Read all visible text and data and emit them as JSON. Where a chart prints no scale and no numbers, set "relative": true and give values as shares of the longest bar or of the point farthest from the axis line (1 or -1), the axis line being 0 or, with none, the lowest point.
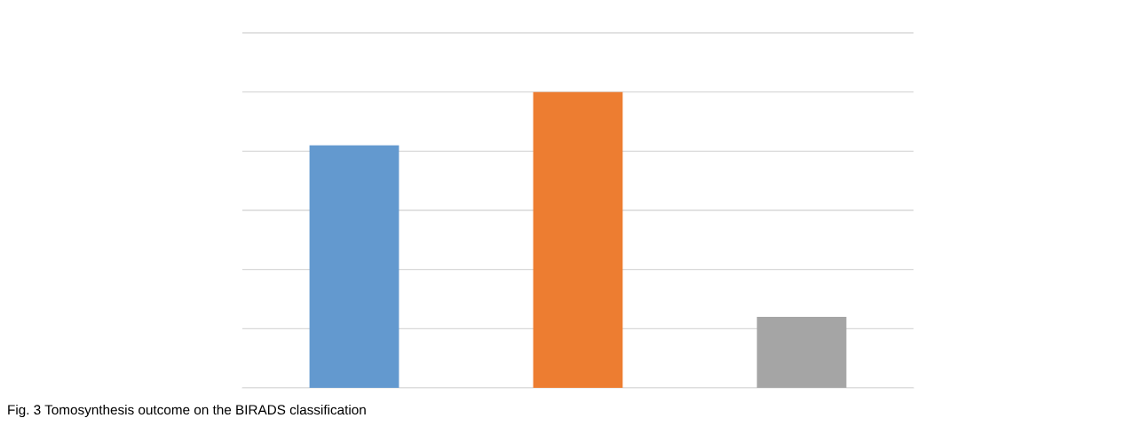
{
  "chart_data": {
    "type": "bar",
    "relative": true,
    "categories": [
      null,
      null,
      null
    ],
    "values": [
      0.82,
      1,
      0.24
    ],
    "colors": [
      "#6399cf",
      "#ed7d31",
      "#a5a5a5"
    ],
    "grid": "y",
    "annotations": [
      "Fig. 3 Tomosynthesis outcome on the BIRADS classification"
    ]
  }
}
